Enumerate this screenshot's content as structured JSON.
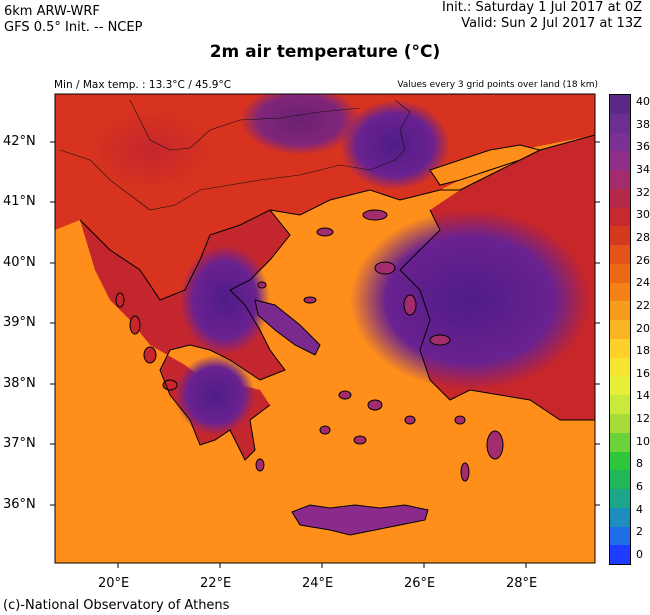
{
  "header": {
    "model_line1": "6km ARW-WRF",
    "model_line2": "GFS 0.5° Init. -- NCEP",
    "init": "Init.: Saturday 1 Jul 2017 at 0Z",
    "valid": "Valid: Sun 2 Jul 2017 at 13Z",
    "title": "2m air temperature (°C)",
    "minmax": "Min / Max temp. : 13.3°C / 45.9°C",
    "values_note": "Values every 3 grid points over land (18 km)"
  },
  "map": {
    "lat_labels": [
      "42°N",
      "41°N",
      "40°N",
      "39°N",
      "38°N",
      "37°N",
      "36°N"
    ],
    "lon_labels": [
      "20°E",
      "22°E",
      "24°E",
      "26°E",
      "28°E"
    ],
    "sea_color": "#ff8f1a",
    "hot_color": "#5e1f8c",
    "warm_color": "#c0222a"
  },
  "colorbar": {
    "ticks": [
      "40",
      "38",
      "36",
      "34",
      "32",
      "30",
      "28",
      "26",
      "24",
      "22",
      "20",
      "18",
      "16",
      "14",
      "12",
      "10",
      "8",
      "6",
      "4",
      "2",
      "0"
    ],
    "colors": [
      "#5b2a86",
      "#6b2f8f",
      "#7a3193",
      "#8e2f8a",
      "#a22c6e",
      "#b6284a",
      "#c42a2f",
      "#d43a1e",
      "#e2531a",
      "#ec6a16",
      "#f48216",
      "#f89c1c",
      "#fbb424",
      "#fdd02a",
      "#f7e531",
      "#e8ef3a",
      "#c9ea3c",
      "#a6dc3a",
      "#6bd23a",
      "#2ec63c",
      "#21b65a",
      "#1ea68a",
      "#1e8ec0",
      "#1e6ee8",
      "#1e3cff"
    ]
  },
  "footer": {
    "credit": "(c)-National Observatory of Athens"
  }
}
